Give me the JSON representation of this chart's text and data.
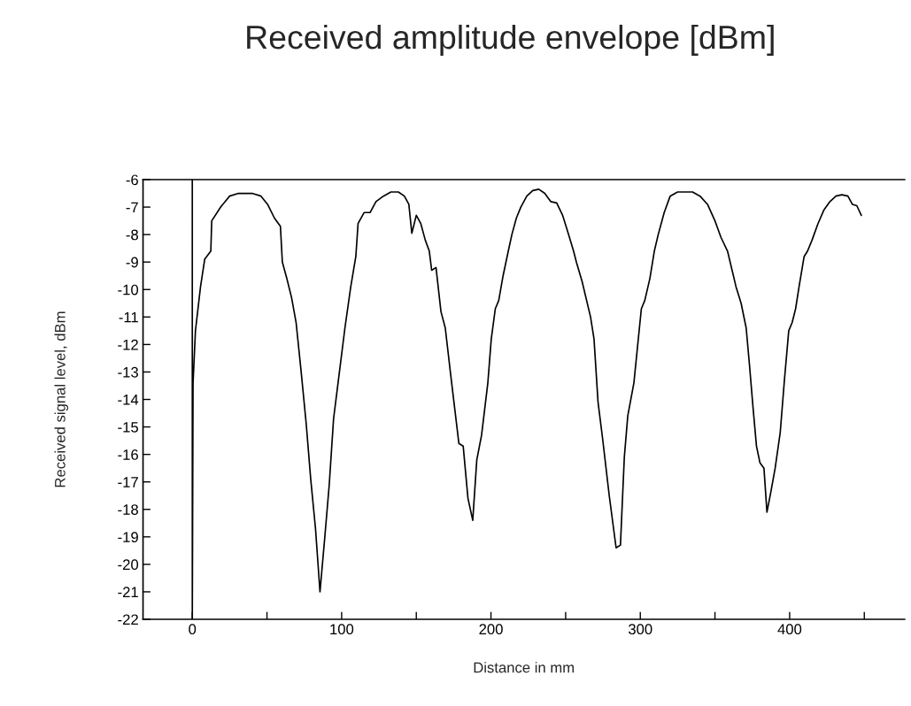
{
  "chart_data": {
    "type": "line",
    "title": "Received amplitude envelope [dBm]",
    "xlabel": "Distance in mm",
    "ylabel": "Received signal level, dBm",
    "x": [
      0,
      0,
      0.5,
      2.1,
      5.5,
      8.3,
      12.4,
      13,
      19,
      25,
      31,
      40,
      46,
      50.4,
      55,
      59,
      60.3,
      63.3,
      66.5,
      69.5,
      72.9,
      76.3,
      79.3,
      82.5,
      85.5,
      88.9,
      91.7,
      94.6,
      97.6,
      102.2,
      106.1,
      109.5,
      111,
      115,
      119,
      123,
      128,
      133,
      138,
      142,
      145,
      147,
      150,
      153,
      156,
      158.7,
      160.3,
      163.2,
      166.5,
      169.4,
      172.8,
      178.5,
      181.4,
      184.6,
      187.8,
      190.5,
      193.7,
      197.9,
      200.2,
      202.9,
      205.2,
      208.1,
      211.6,
      214,
      217,
      220,
      224,
      228,
      232,
      236,
      240,
      244,
      248,
      252,
      255.3,
      257.2,
      261,
      266.7,
      269,
      271.7,
      274.7,
      279.2,
      283.8,
      286.7,
      289.3,
      291.6,
      295.7,
      300.7,
      303.0,
      306.4,
      309.4,
      312,
      316,
      320,
      325,
      330,
      335,
      340,
      345,
      350,
      354,
      358.4,
      364.1,
      367.5,
      370.9,
      373.2,
      375.5,
      377.8,
      380.1,
      382.8,
      384.8,
      387.3,
      390.3,
      393.7,
      396.5,
      399.4,
      401.7,
      404.0,
      406.3,
      409.7,
      412,
      415,
      419,
      423,
      427,
      431,
      435,
      439,
      442,
      445,
      448
    ],
    "values": [
      -6,
      -22,
      -13.4,
      -11.5,
      -9.9,
      -8.9,
      -8.6,
      -7.5,
      -7.0,
      -6.6,
      -6.5,
      -6.5,
      -6.6,
      -6.9,
      -7.4,
      -7.7,
      -9.0,
      -9.6,
      -10.3,
      -11.2,
      -13.0,
      -14.9,
      -16.9,
      -18.7,
      -21.0,
      -18.9,
      -17.1,
      -14.7,
      -13.4,
      -11.4,
      -9.9,
      -8.8,
      -7.6,
      -7.2,
      -7.2,
      -6.8,
      -6.6,
      -6.45,
      -6.45,
      -6.6,
      -6.9,
      -7.95,
      -7.3,
      -7.6,
      -8.2,
      -8.6,
      -9.3,
      -9.2,
      -10.8,
      -11.4,
      -13.0,
      -15.6,
      -15.7,
      -17.6,
      -18.4,
      -16.2,
      -15.3,
      -13.4,
      -11.8,
      -10.7,
      -10.4,
      -9.5,
      -8.6,
      -8.0,
      -7.4,
      -7.0,
      -6.6,
      -6.4,
      -6.35,
      -6.5,
      -6.8,
      -6.85,
      -7.3,
      -8.0,
      -8.6,
      -9.0,
      -9.7,
      -11.0,
      -11.8,
      -14.1,
      -15.4,
      -17.5,
      -19.4,
      -19.3,
      -16.1,
      -14.6,
      -13.4,
      -10.7,
      -10.4,
      -9.6,
      -8.6,
      -8.0,
      -7.2,
      -6.6,
      -6.45,
      -6.45,
      -6.45,
      -6.6,
      -6.9,
      -7.5,
      -8.1,
      -8.6,
      -9.9,
      -10.5,
      -11.4,
      -12.8,
      -14.3,
      -15.7,
      -16.3,
      -16.5,
      -18.1,
      -17.4,
      -16.5,
      -15.2,
      -13.3,
      -11.5,
      -11.2,
      -10.7,
      -9.9,
      -8.8,
      -8.6,
      -8.2,
      -7.6,
      -7.1,
      -6.8,
      -6.6,
      -6.55,
      -6.6,
      -6.9,
      -6.95,
      -7.3
    ],
    "color": "#000000",
    "xlim": [
      -33,
      477
    ],
    "xticks": [
      0,
      {
        "value": 50,
        "label": null
      },
      100,
      {
        "value": 150,
        "label": null
      },
      200,
      {
        "value": 250,
        "label": null
      },
      300,
      {
        "value": 350,
        "label": null
      },
      400,
      {
        "value": 450,
        "label": null
      }
    ],
    "ylim": [
      -22,
      -6
    ],
    "yticks": [
      -22,
      -21,
      -20,
      -19,
      -18,
      -17,
      -16,
      -15,
      -14,
      -13,
      -12,
      -11,
      -10,
      -9,
      -8,
      -7,
      -6
    ],
    "grid": false,
    "marker": "none",
    "line_style": "solid"
  }
}
